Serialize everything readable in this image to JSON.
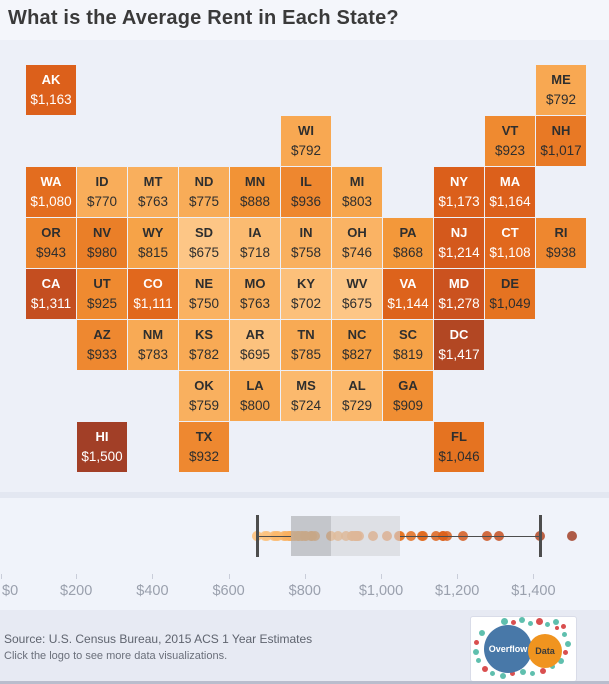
{
  "title": "What is the Average Rent in Each State?",
  "footer": {
    "source": "Source: U.S. Census Bureau, 2015 ACS 1 Year Estimates",
    "hint": "Click the logo to see more data visualizations.",
    "logo": {
      "bubble1": "Overflow",
      "bubble2": "Data",
      "colors": {
        "bubble1_bg": "#4878a8",
        "bubble1_text": "#ffffff",
        "bubble2_bg": "#f0941f",
        "bubble2_text": "#3a3a3a",
        "small_teal": "#5fbfae",
        "small_red": "#d94f4f"
      }
    }
  },
  "chart_data": [
    {
      "type": "heatmap",
      "subtype": "tile-grid-map",
      "title": "What is the Average Rent in Each State?",
      "value_unit": "average monthly rent, USD",
      "states": [
        {
          "abbr": "AK",
          "label": "$1,163",
          "value": 1163,
          "row": 0,
          "col": 0,
          "color": "#dc601b",
          "text_color": "#ffffff"
        },
        {
          "abbr": "ME",
          "label": "$792",
          "value": 792,
          "row": 0,
          "col": 10,
          "color": "#f8a852",
          "text_color": "#2e2e2e"
        },
        {
          "abbr": "WI",
          "label": "$792",
          "value": 792,
          "row": 1,
          "col": 5,
          "color": "#f8a852",
          "text_color": "#2e2e2e"
        },
        {
          "abbr": "VT",
          "label": "$923",
          "value": 923,
          "row": 1,
          "col": 9,
          "color": "#ef8a30",
          "text_color": "#2e2e2e"
        },
        {
          "abbr": "NH",
          "label": "$1,017",
          "value": 1017,
          "row": 1,
          "col": 10,
          "color": "#e87925",
          "text_color": "#2e2e2e"
        },
        {
          "abbr": "WA",
          "label": "$1,080",
          "value": 1080,
          "row": 2,
          "col": 0,
          "color": "#e36d1f",
          "text_color": "#ffffff"
        },
        {
          "abbr": "ID",
          "label": "$770",
          "value": 770,
          "row": 2,
          "col": 1,
          "color": "#f9ad5a",
          "text_color": "#2e2e2e"
        },
        {
          "abbr": "MT",
          "label": "$763",
          "value": 763,
          "row": 2,
          "col": 2,
          "color": "#f9af5d",
          "text_color": "#2e2e2e"
        },
        {
          "abbr": "ND",
          "label": "$775",
          "value": 775,
          "row": 2,
          "col": 3,
          "color": "#f8ac58",
          "text_color": "#2e2e2e"
        },
        {
          "abbr": "MN",
          "label": "$888",
          "value": 888,
          "row": 2,
          "col": 4,
          "color": "#f29336",
          "text_color": "#2e2e2e"
        },
        {
          "abbr": "IL",
          "label": "$936",
          "value": 936,
          "row": 2,
          "col": 5,
          "color": "#ee872f",
          "text_color": "#2e2e2e"
        },
        {
          "abbr": "MI",
          "label": "$803",
          "value": 803,
          "row": 2,
          "col": 6,
          "color": "#f7a64d",
          "text_color": "#2e2e2e"
        },
        {
          "abbr": "NY",
          "label": "$1,173",
          "value": 1173,
          "row": 2,
          "col": 8,
          "color": "#db5f1b",
          "text_color": "#ffffff"
        },
        {
          "abbr": "MA",
          "label": "$1,164",
          "value": 1164,
          "row": 2,
          "col": 9,
          "color": "#dc601b",
          "text_color": "#ffffff"
        },
        {
          "abbr": "OR",
          "label": "$943",
          "value": 943,
          "row": 3,
          "col": 0,
          "color": "#ed862e",
          "text_color": "#2e2e2e"
        },
        {
          "abbr": "NV",
          "label": "$980",
          "value": 980,
          "row": 3,
          "col": 1,
          "color": "#ea7f28",
          "text_color": "#2e2e2e"
        },
        {
          "abbr": "WY",
          "label": "$815",
          "value": 815,
          "row": 3,
          "col": 2,
          "color": "#f6a348",
          "text_color": "#2e2e2e"
        },
        {
          "abbr": "SD",
          "label": "$675",
          "value": 675,
          "row": 3,
          "col": 3,
          "color": "#fdc686",
          "text_color": "#2e2e2e"
        },
        {
          "abbr": "IA",
          "label": "$718",
          "value": 718,
          "row": 3,
          "col": 4,
          "color": "#fbbb71",
          "text_color": "#2e2e2e"
        },
        {
          "abbr": "IN",
          "label": "$758",
          "value": 758,
          "row": 3,
          "col": 5,
          "color": "#f9b05f",
          "text_color": "#2e2e2e"
        },
        {
          "abbr": "OH",
          "label": "$746",
          "value": 746,
          "row": 3,
          "col": 6,
          "color": "#fab364",
          "text_color": "#2e2e2e"
        },
        {
          "abbr": "PA",
          "label": "$868",
          "value": 868,
          "row": 3,
          "col": 7,
          "color": "#f3983a",
          "text_color": "#2e2e2e"
        },
        {
          "abbr": "NJ",
          "label": "$1,214",
          "value": 1214,
          "row": 3,
          "col": 8,
          "color": "#d4591c",
          "text_color": "#ffffff"
        },
        {
          "abbr": "CT",
          "label": "$1,108",
          "value": 1108,
          "row": 3,
          "col": 9,
          "color": "#e1681d",
          "text_color": "#ffffff"
        },
        {
          "abbr": "RI",
          "label": "$938",
          "value": 938,
          "row": 3,
          "col": 10,
          "color": "#ee872f",
          "text_color": "#2e2e2e"
        },
        {
          "abbr": "CA",
          "label": "$1,311",
          "value": 1311,
          "row": 4,
          "col": 0,
          "color": "#c44e20",
          "text_color": "#ffffff"
        },
        {
          "abbr": "UT",
          "label": "$925",
          "value": 925,
          "row": 4,
          "col": 1,
          "color": "#ef8a30",
          "text_color": "#2e2e2e"
        },
        {
          "abbr": "CO",
          "label": "$1,111",
          "value": 1111,
          "row": 4,
          "col": 2,
          "color": "#e1681d",
          "text_color": "#ffffff"
        },
        {
          "abbr": "NE",
          "label": "$750",
          "value": 750,
          "row": 4,
          "col": 3,
          "color": "#fab262",
          "text_color": "#2e2e2e"
        },
        {
          "abbr": "MO",
          "label": "$763",
          "value": 763,
          "row": 4,
          "col": 4,
          "color": "#f9af5d",
          "text_color": "#2e2e2e"
        },
        {
          "abbr": "KY",
          "label": "$702",
          "value": 702,
          "row": 4,
          "col": 5,
          "color": "#fcc07a",
          "text_color": "#2e2e2e"
        },
        {
          "abbr": "WV",
          "label": "$675",
          "value": 675,
          "row": 4,
          "col": 6,
          "color": "#fdc686",
          "text_color": "#2e2e2e"
        },
        {
          "abbr": "VA",
          "label": "$1,144",
          "value": 1144,
          "row": 4,
          "col": 7,
          "color": "#dd631c",
          "text_color": "#ffffff"
        },
        {
          "abbr": "MD",
          "label": "$1,278",
          "value": 1278,
          "row": 4,
          "col": 8,
          "color": "#cb521f",
          "text_color": "#ffffff"
        },
        {
          "abbr": "DE",
          "label": "$1,049",
          "value": 1049,
          "row": 4,
          "col": 9,
          "color": "#e57321",
          "text_color": "#2e2e2e"
        },
        {
          "abbr": "AZ",
          "label": "$933",
          "value": 933,
          "row": 5,
          "col": 1,
          "color": "#ee8830",
          "text_color": "#2e2e2e"
        },
        {
          "abbr": "NM",
          "label": "$783",
          "value": 783,
          "row": 5,
          "col": 2,
          "color": "#f8aa55",
          "text_color": "#2e2e2e"
        },
        {
          "abbr": "KS",
          "label": "$782",
          "value": 782,
          "row": 5,
          "col": 3,
          "color": "#f8aa55",
          "text_color": "#2e2e2e"
        },
        {
          "abbr": "AR",
          "label": "$695",
          "value": 695,
          "row": 5,
          "col": 4,
          "color": "#fcc27e",
          "text_color": "#2e2e2e"
        },
        {
          "abbr": "TN",
          "label": "$785",
          "value": 785,
          "row": 5,
          "col": 5,
          "color": "#f8aa54",
          "text_color": "#2e2e2e"
        },
        {
          "abbr": "NC",
          "label": "$827",
          "value": 827,
          "row": 5,
          "col": 6,
          "color": "#f5a044",
          "text_color": "#2e2e2e"
        },
        {
          "abbr": "SC",
          "label": "$819",
          "value": 819,
          "row": 5,
          "col": 7,
          "color": "#f6a247",
          "text_color": "#2e2e2e"
        },
        {
          "abbr": "DC",
          "label": "$1,417",
          "value": 1417,
          "row": 5,
          "col": 8,
          "color": "#b24723",
          "text_color": "#ffffff"
        },
        {
          "abbr": "OK",
          "label": "$759",
          "value": 759,
          "row": 6,
          "col": 3,
          "color": "#f9b05f",
          "text_color": "#2e2e2e"
        },
        {
          "abbr": "LA",
          "label": "$800",
          "value": 800,
          "row": 6,
          "col": 4,
          "color": "#f7a64e",
          "text_color": "#2e2e2e"
        },
        {
          "abbr": "MS",
          "label": "$724",
          "value": 724,
          "row": 6,
          "col": 5,
          "color": "#fbb96d",
          "text_color": "#2e2e2e"
        },
        {
          "abbr": "AL",
          "label": "$729",
          "value": 729,
          "row": 6,
          "col": 6,
          "color": "#fbb86b",
          "text_color": "#2e2e2e"
        },
        {
          "abbr": "GA",
          "label": "$909",
          "value": 909,
          "row": 6,
          "col": 7,
          "color": "#f08e33",
          "text_color": "#2e2e2e"
        },
        {
          "abbr": "HI",
          "label": "$1,500",
          "value": 1500,
          "row": 7,
          "col": 1,
          "color": "#a23f27",
          "text_color": "#ffffff"
        },
        {
          "abbr": "TX",
          "label": "$932",
          "value": 932,
          "row": 7,
          "col": 3,
          "color": "#ee8830",
          "text_color": "#2e2e2e"
        },
        {
          "abbr": "FL",
          "label": "$1,046",
          "value": 1046,
          "row": 7,
          "col": 8,
          "color": "#e57321",
          "text_color": "#2e2e2e"
        }
      ]
    },
    {
      "type": "boxplot",
      "orientation": "horizontal",
      "summary": {
        "min": 675,
        "q1": 763,
        "median": 868,
        "q3": 1049,
        "upper_whisker": 1417,
        "outliers": [
          1500
        ]
      },
      "points_source": "one dot per state value, colored by same scale",
      "x_axis": {
        "tick_labels": [
          "$0",
          "$200",
          "$400",
          "$600",
          "$800",
          "$1,000",
          "$1,200",
          "$1,400"
        ],
        "tick_values": [
          0,
          200,
          400,
          600,
          800,
          1000,
          1200,
          1400
        ],
        "range": [
          0,
          1580
        ],
        "grid": false
      },
      "box_colors": {
        "q1_to_median": "#aaaaae",
        "median_to_q3": "#d4d4d8",
        "whisker": "#4d4d4d"
      }
    }
  ]
}
